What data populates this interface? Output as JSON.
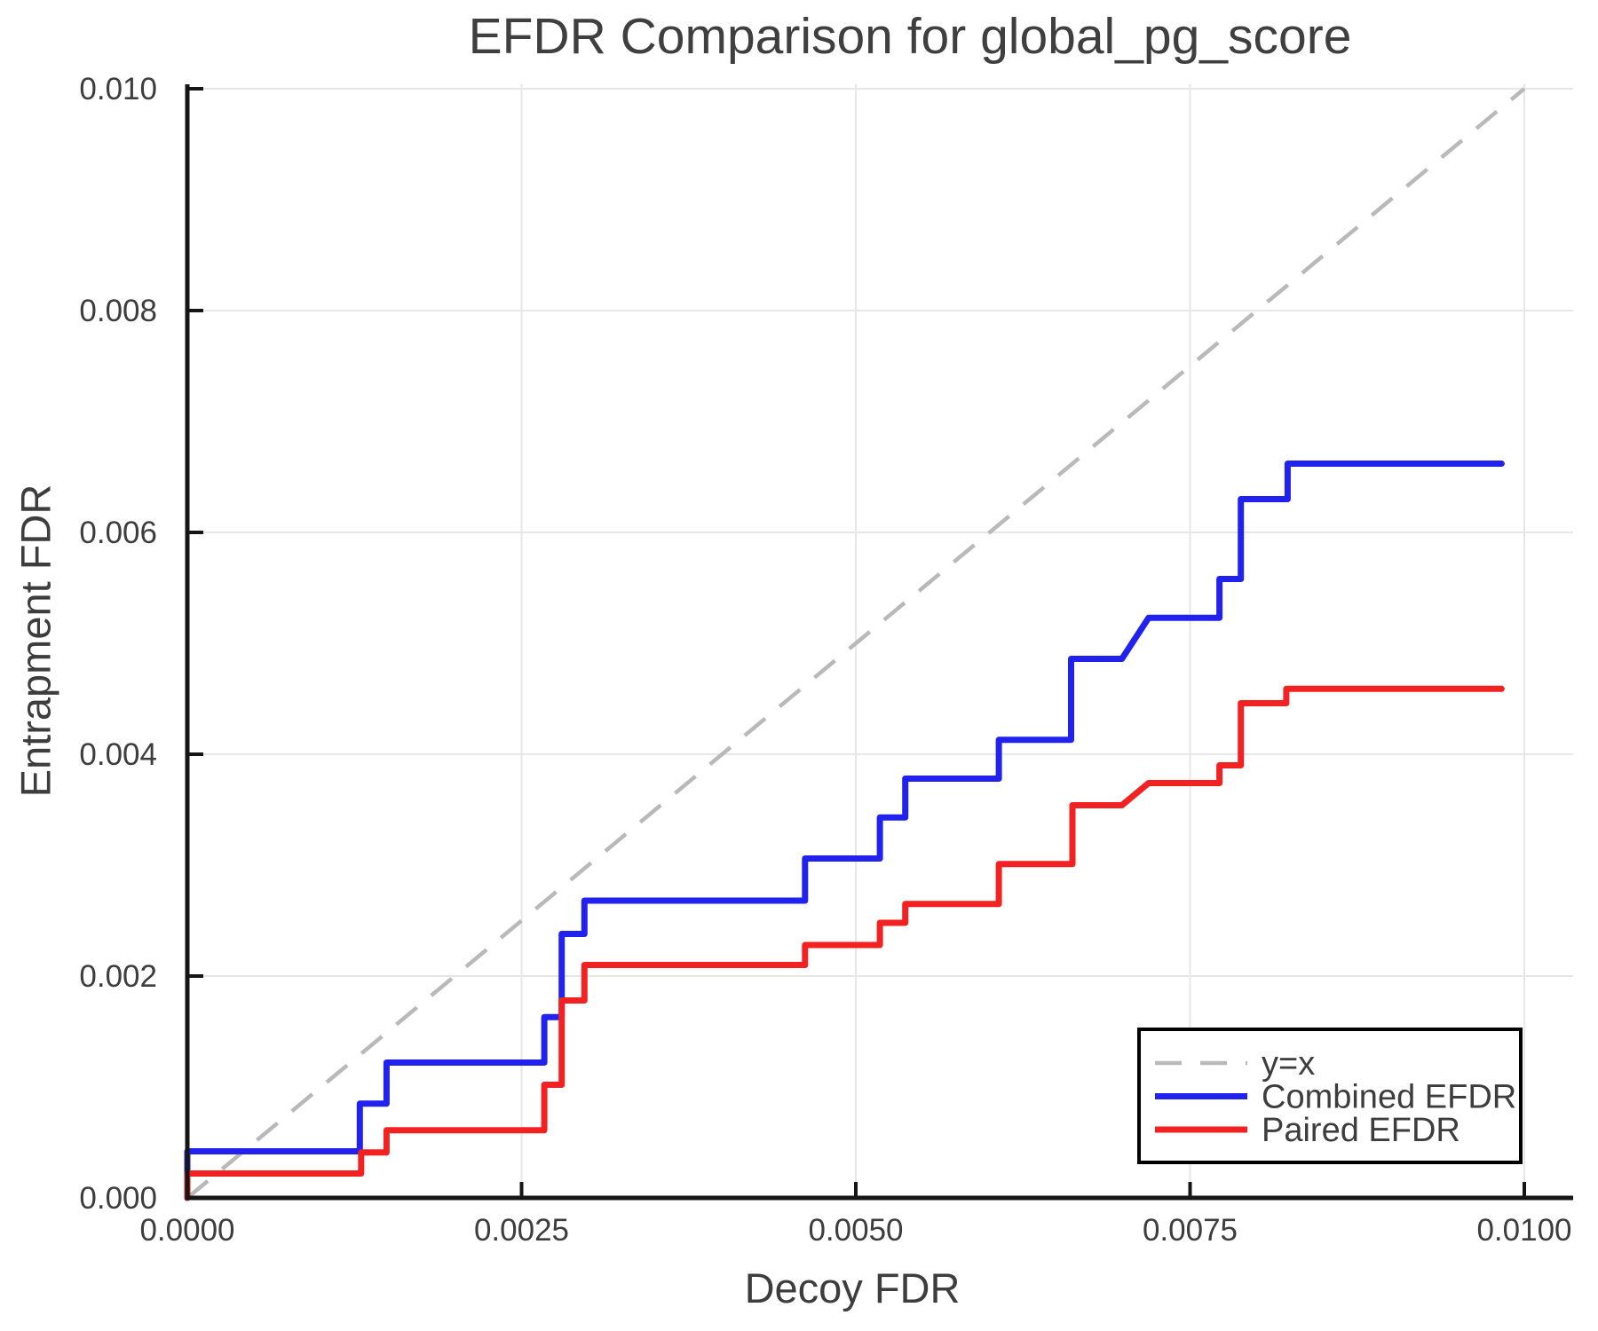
{
  "chart_data": {
    "type": "line",
    "title": "EFDR Comparison for global_pg_score",
    "xlabel": "Decoy FDR",
    "ylabel": "Entrapment FDR",
    "xlim": [
      0,
      0.01
    ],
    "ylim": [
      0,
      0.01
    ],
    "grid": true,
    "legend_position": "lower right",
    "x_ticks": [
      0,
      0.0025,
      0.005,
      0.0075,
      0.01
    ],
    "x_tick_labels": [
      "0.0000",
      "0.0025",
      "0.0050",
      "0.0075",
      "0.0100"
    ],
    "y_ticks": [
      0,
      0.002,
      0.004,
      0.006,
      0.008,
      0.01
    ],
    "y_tick_labels": [
      "0.000",
      "0.002",
      "0.004",
      "0.006",
      "0.008",
      "0.010"
    ],
    "reference_line": {
      "label": "y=x",
      "from": [
        0,
        0
      ],
      "to": [
        0.01,
        0.01
      ],
      "style": "dashed",
      "color": "#b9b9b9"
    },
    "series": [
      {
        "name": "Combined EFDR",
        "color": "#2222ee",
        "points": [
          [
            0,
            0
          ],
          [
            0,
            0.00042
          ],
          [
            0.00129,
            0.00042
          ],
          [
            0.00129,
            0.00085
          ],
          [
            0.00149,
            0.00085
          ],
          [
            0.00149,
            0.00122
          ],
          [
            0.00267,
            0.00122
          ],
          [
            0.00267,
            0.00163
          ],
          [
            0.0028,
            0.00163
          ],
          [
            0.0028,
            0.00238
          ],
          [
            0.00297,
            0.00238
          ],
          [
            0.00297,
            0.00268
          ],
          [
            0.00462,
            0.00268
          ],
          [
            0.00462,
            0.00306
          ],
          [
            0.00518,
            0.00306
          ],
          [
            0.00518,
            0.00343
          ],
          [
            0.00537,
            0.00343
          ],
          [
            0.00537,
            0.00378
          ],
          [
            0.00607,
            0.00378
          ],
          [
            0.00607,
            0.00413
          ],
          [
            0.00661,
            0.00413
          ],
          [
            0.00661,
            0.00486
          ],
          [
            0.00699,
            0.00486
          ],
          [
            0.00719,
            0.00523
          ],
          [
            0.00772,
            0.00523
          ],
          [
            0.00772,
            0.00558
          ],
          [
            0.00788,
            0.00558
          ],
          [
            0.00788,
            0.0063
          ],
          [
            0.00823,
            0.0063
          ],
          [
            0.00823,
            0.00662
          ],
          [
            0.00983,
            0.00662
          ]
        ]
      },
      {
        "name": "Paired EFDR",
        "color": "#f22222",
        "points": [
          [
            0,
            0
          ],
          [
            0,
            0.00022
          ],
          [
            0.0013,
            0.00022
          ],
          [
            0.0013,
            0.00041
          ],
          [
            0.00149,
            0.00041
          ],
          [
            0.00149,
            0.00061
          ],
          [
            0.00267,
            0.00061
          ],
          [
            0.00267,
            0.00102
          ],
          [
            0.0028,
            0.00102
          ],
          [
            0.0028,
            0.00178
          ],
          [
            0.00297,
            0.00178
          ],
          [
            0.00297,
            0.0021
          ],
          [
            0.00462,
            0.0021
          ],
          [
            0.00462,
            0.00228
          ],
          [
            0.00518,
            0.00228
          ],
          [
            0.00518,
            0.00248
          ],
          [
            0.00537,
            0.00248
          ],
          [
            0.00537,
            0.00265
          ],
          [
            0.00607,
            0.00265
          ],
          [
            0.00607,
            0.00301
          ],
          [
            0.00662,
            0.00301
          ],
          [
            0.00662,
            0.00354
          ],
          [
            0.00699,
            0.00354
          ],
          [
            0.00719,
            0.00374
          ],
          [
            0.00772,
            0.00374
          ],
          [
            0.00772,
            0.0039
          ],
          [
            0.00788,
            0.0039
          ],
          [
            0.00788,
            0.00446
          ],
          [
            0.00822,
            0.00446
          ],
          [
            0.00822,
            0.00459
          ],
          [
            0.00983,
            0.00459
          ]
        ]
      }
    ],
    "legend_items": [
      {
        "label": "y=x",
        "style": "dashed",
        "color": "#b9b9b9"
      },
      {
        "label": "Combined EFDR",
        "style": "solid",
        "color": "#2222ee"
      },
      {
        "label": "Paired EFDR",
        "style": "solid",
        "color": "#f22222"
      }
    ],
    "colors": {
      "grid": "#e7e7e7",
      "spine": "#161616",
      "tick_text": "#3d3d3d",
      "title_text": "#3f3f3f",
      "legend_border": "#000000",
      "background": "#ffffff"
    }
  }
}
